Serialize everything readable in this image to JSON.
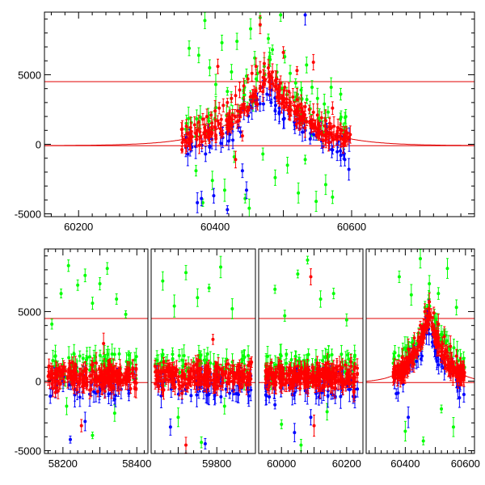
{
  "chart_data": [
    {
      "type": "scatter",
      "title": "",
      "xlabel": "",
      "ylabel": "",
      "xlim": [
        60150,
        60780
      ],
      "ylim": [
        -5200,
        9500
      ],
      "xticks": [
        "60200",
        "60400",
        "60600"
      ],
      "yticks": [
        "-5000",
        "0",
        "5000"
      ],
      "reference_lines_y": [
        4500,
        -100
      ],
      "model_curve": {
        "center": 60478,
        "peak": 5000,
        "baseline": -100,
        "tau": 52
      },
      "series": [
        {
          "color": "#00ff00",
          "values": [
            [
              60362,
              6900
            ],
            [
              60376,
              6400
            ],
            [
              60385,
              8900
            ],
            [
              60392,
              5500
            ],
            [
              60401,
              4300
            ],
            [
              60410,
              7300
            ],
            [
              60418,
              3800
            ],
            [
              60424,
              5200
            ],
            [
              60432,
              7400
            ],
            [
              60441,
              3300
            ],
            [
              60446,
              4900
            ],
            [
              60452,
              8300
            ],
            [
              60458,
              6200
            ],
            [
              60466,
              9100
            ],
            [
              60472,
              5600
            ],
            [
              60478,
              7600
            ],
            [
              60484,
              6800
            ],
            [
              60490,
              4800
            ],
            [
              60496,
              9300
            ],
            [
              60502,
              6300
            ],
            [
              60510,
              5100
            ],
            [
              60518,
              4400
            ],
            [
              60526,
              3900
            ],
            [
              60534,
              5700
            ],
            [
              60542,
              4100
            ],
            [
              60550,
              3300
            ],
            [
              60560,
              2900
            ],
            [
              60570,
              4100
            ],
            [
              60584,
              3600
            ],
            [
              60358,
              1500
            ],
            [
              60372,
              -1900
            ],
            [
              60382,
              -4200
            ],
            [
              60396,
              -2600
            ],
            [
              60414,
              -3300
            ],
            [
              60428,
              -900
            ],
            [
              60444,
              -3900
            ],
            [
              60450,
              -4600
            ],
            [
              60470,
              -700
            ],
            [
              60488,
              -2400
            ],
            [
              60506,
              -1500
            ],
            [
              60522,
              -3500
            ],
            [
              60532,
              -1100
            ],
            [
              60548,
              -4100
            ],
            [
              60562,
              -2900
            ],
            [
              60572,
              -3800
            ]
          ]
        },
        {
          "color": "#0000ff",
          "values": [
            [
              60358,
              500
            ],
            [
              60366,
              -200
            ],
            [
              60374,
              -4200
            ],
            [
              60380,
              -3900
            ],
            [
              60386,
              -700
            ],
            [
              60392,
              -200
            ],
            [
              60398,
              -3700
            ],
            [
              60408,
              800
            ],
            [
              60418,
              -4700
            ],
            [
              60426,
              300
            ],
            [
              60434,
              1200
            ],
            [
              60440,
              -1900
            ],
            [
              60446,
              -3300
            ],
            [
              60454,
              2600
            ],
            [
              60462,
              3200
            ],
            [
              60470,
              4100
            ],
            [
              60476,
              3600
            ],
            [
              60482,
              3000
            ],
            [
              60488,
              2400
            ],
            [
              60494,
              2600
            ],
            [
              60500,
              1800
            ],
            [
              60508,
              2200
            ],
            [
              60516,
              1600
            ],
            [
              60524,
              1100
            ],
            [
              60532,
              1000
            ],
            [
              60540,
              800
            ],
            [
              60548,
              600
            ],
            [
              60556,
              300
            ],
            [
              60564,
              900
            ],
            [
              60572,
              -400
            ],
            [
              60580,
              200
            ],
            [
              60590,
              -1100
            ],
            [
              60596,
              -1800
            ],
            [
              60532,
              9300
            ]
          ]
        },
        {
          "color": "#ff0000",
          "values": [
            [
              60352,
              1100
            ],
            [
              60358,
              1300
            ],
            [
              60364,
              1200
            ],
            [
              60370,
              1400
            ],
            [
              60376,
              1600
            ],
            [
              60382,
              1800
            ],
            [
              60388,
              2000
            ],
            [
              60394,
              2100
            ],
            [
              60400,
              2400
            ],
            [
              60406,
              2600
            ],
            [
              60412,
              2800
            ],
            [
              60418,
              3000
            ],
            [
              60424,
              3300
            ],
            [
              60430,
              3500
            ],
            [
              60436,
              3900
            ],
            [
              60442,
              4200
            ],
            [
              60448,
              4700
            ],
            [
              60454,
              5100
            ],
            [
              60460,
              5600
            ],
            [
              60466,
              5200
            ],
            [
              60472,
              5800
            ],
            [
              60478,
              5500
            ],
            [
              60484,
              5200
            ],
            [
              60490,
              4700
            ],
            [
              60496,
              4400
            ],
            [
              60502,
              4100
            ],
            [
              60508,
              3800
            ],
            [
              60514,
              3400
            ],
            [
              60520,
              3200
            ],
            [
              60526,
              2900
            ],
            [
              60532,
              2700
            ],
            [
              60538,
              2500
            ],
            [
              60544,
              2300
            ],
            [
              60550,
              2100
            ],
            [
              60556,
              1900
            ],
            [
              60562,
              1700
            ],
            [
              60568,
              1500
            ],
            [
              60574,
              1300
            ],
            [
              60580,
              1200
            ],
            [
              60586,
              1000
            ],
            [
              60592,
              900
            ],
            [
              60598,
              700
            ],
            [
              60404,
              5600
            ],
            [
              60430,
              -1100
            ],
            [
              60440,
              600
            ],
            [
              60466,
              8600
            ],
            [
              60500,
              6600
            ],
            [
              60520,
              5300
            ],
            [
              60544,
              5900
            ],
            [
              60572,
              2600
            ]
          ]
        }
      ]
    },
    {
      "type": "scatter",
      "title": "",
      "xlabel": "",
      "ylabel": "",
      "ylim": [
        -5200,
        9500
      ],
      "yticks": [
        "-5000",
        "0",
        "5000"
      ],
      "reference_lines_y": [
        4500,
        -100
      ],
      "panels": [
        {
          "xlim": [
            58150,
            58430
          ],
          "xticks": [
            "58200",
            "58400"
          ],
          "cluster": [
            58160,
            58400
          ]
        },
        {
          "xlim": [
            59630,
            59900
          ],
          "xticks": [
            "59800"
          ],
          "cluster": [
            59640,
            59890
          ]
        },
        {
          "xlim": [
            59930,
            60250
          ],
          "xticks": [
            "60000",
            "60200"
          ],
          "cluster": [
            59950,
            60235
          ]
        },
        {
          "xlim": [
            60270,
            60630
          ],
          "xticks": [
            "60400",
            "60600"
          ],
          "cluster": [
            60360,
            60600
          ],
          "model": true
        }
      ],
      "model_curve": {
        "center": 60478,
        "peak": 5000,
        "baseline": -100,
        "tau": 52
      },
      "series": [
        {
          "color": "#00ff00",
          "values": [
            [
              58170,
              4100
            ],
            [
              58195,
              6300
            ],
            [
              58215,
              8300
            ],
            [
              58240,
              6900
            ],
            [
              58260,
              7600
            ],
            [
              58280,
              5600
            ],
            [
              58300,
              7000
            ],
            [
              58320,
              8100
            ],
            [
              58345,
              5900
            ],
            [
              58370,
              4800
            ],
            [
              58210,
              -1800
            ],
            [
              58280,
              -3900
            ],
            [
              58340,
              -2300
            ],
            [
              59660,
              7200
            ],
            [
              59690,
              5400
            ],
            [
              59720,
              7800
            ],
            [
              59750,
              6000
            ],
            [
              59780,
              6700
            ],
            [
              59810,
              8200
            ],
            [
              59840,
              5200
            ],
            [
              59700,
              -2600
            ],
            [
              59760,
              -4400
            ],
            [
              59820,
              -1800
            ],
            [
              59980,
              6600
            ],
            [
              60010,
              4700
            ],
            [
              60050,
              7700
            ],
            [
              60080,
              8700
            ],
            [
              60120,
              5900
            ],
            [
              60160,
              6300
            ],
            [
              60200,
              4400
            ],
            [
              60000,
              -3100
            ],
            [
              60060,
              -4600
            ],
            [
              60140,
              -2200
            ],
            [
              60380,
              7500
            ],
            [
              60420,
              6200
            ],
            [
              60450,
              8800
            ],
            [
              60480,
              7000
            ],
            [
              60510,
              6300
            ],
            [
              60540,
              8100
            ],
            [
              60570,
              5300
            ],
            [
              60400,
              -3600
            ],
            [
              60460,
              -4300
            ],
            [
              60520,
              -2000
            ],
            [
              60560,
              -3300
            ]
          ]
        },
        {
          "color": "#0000ff",
          "values": [
            [
              58180,
              -800
            ],
            [
              58220,
              -4200
            ],
            [
              58260,
              -2900
            ],
            [
              58300,
              300
            ],
            [
              58340,
              -1300
            ],
            [
              58380,
              500
            ],
            [
              59680,
              -3300
            ],
            [
              59720,
              -600
            ],
            [
              59770,
              -4500
            ],
            [
              59810,
              200
            ],
            [
              59850,
              -900
            ],
            [
              59980,
              -1700
            ],
            [
              60040,
              -3700
            ],
            [
              60090,
              -2600
            ],
            [
              60150,
              600
            ],
            [
              60220,
              -1100
            ],
            [
              60370,
              -900
            ],
            [
              60410,
              -2600
            ],
            [
              60440,
              2200
            ],
            [
              60470,
              3400
            ],
            [
              60490,
              2800
            ],
            [
              60520,
              1400
            ],
            [
              60550,
              600
            ],
            [
              60580,
              -1200
            ]
          ]
        },
        {
          "color": "#ff0000",
          "values": [
            [
              58170,
              300
            ],
            [
              58200,
              600
            ],
            [
              58230,
              400
            ],
            [
              58260,
              900
            ],
            [
              58290,
              1300
            ],
            [
              58320,
              600
            ],
            [
              58350,
              200
            ],
            [
              58380,
              500
            ],
            [
              58250,
              -3200
            ],
            [
              58310,
              2700
            ],
            [
              59650,
              300
            ],
            [
              59680,
              800
            ],
            [
              59710,
              200
            ],
            [
              59740,
              1100
            ],
            [
              59770,
              500
            ],
            [
              59800,
              900
            ],
            [
              59830,
              300
            ],
            [
              59860,
              600
            ],
            [
              59720,
              -4600
            ],
            [
              59790,
              3000
            ],
            [
              59960,
              500
            ],
            [
              59990,
              900
            ],
            [
              60020,
              400
            ],
            [
              60050,
              1100
            ],
            [
              60080,
              600
            ],
            [
              60110,
              1300
            ],
            [
              60140,
              700
            ],
            [
              60170,
              1000
            ],
            [
              60200,
              500
            ],
            [
              60090,
              7500
            ],
            [
              60100,
              -3200
            ],
            [
              60365,
              1100
            ],
            [
              60390,
              1700
            ],
            [
              60410,
              2300
            ],
            [
              60430,
              3100
            ],
            [
              60450,
              4000
            ],
            [
              60465,
              5000
            ],
            [
              60480,
              5700
            ],
            [
              60495,
              4900
            ],
            [
              60510,
              4100
            ],
            [
              60530,
              3200
            ],
            [
              60550,
              2500
            ],
            [
              60570,
              1800
            ],
            [
              60590,
              1100
            ]
          ]
        }
      ]
    }
  ]
}
